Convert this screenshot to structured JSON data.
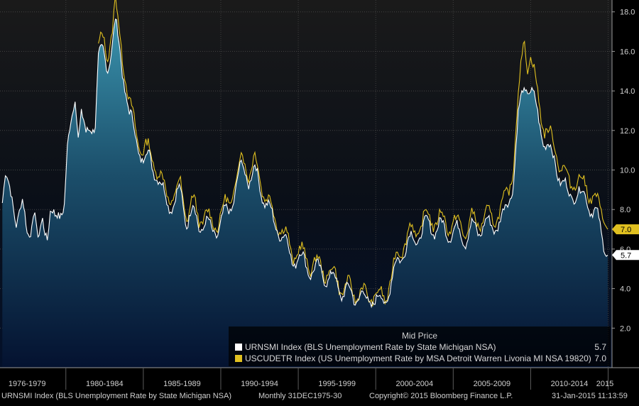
{
  "chart_data": {
    "type": "area",
    "x_unit": "year",
    "xlim": [
      1975.5,
      2015.3
    ],
    "ylim": [
      0,
      18.6
    ],
    "y_ticks": [
      2.0,
      4.0,
      6.0,
      8.0,
      10.0,
      12.0,
      14.0,
      16.0,
      18.0
    ],
    "x_period_labels": [
      {
        "label": "1976-1979",
        "center": 1977.5
      },
      {
        "label": "1980-1984",
        "center": 1982.5
      },
      {
        "label": "1985-1989",
        "center": 1987.5
      },
      {
        "label": "1990-1994",
        "center": 1992.5
      },
      {
        "label": "1995-1999",
        "center": 1997.5
      },
      {
        "label": "2000-2004",
        "center": 2002.5
      },
      {
        "label": "2005-2009",
        "center": 2007.5
      },
      {
        "label": "2010-2014",
        "center": 2012.5
      },
      {
        "label": "2015",
        "center": 2015.1
      }
    ],
    "grid": true,
    "legend_position": "bottom-right",
    "legend_title": "Mid Price",
    "series": [
      {
        "name": "URNSMI Index (BLS Unemployment Rate by State Michigan NSA)",
        "legend_value": "5.7",
        "last_value_label": "5.7",
        "color": "#ffffff",
        "points": [
          [
            1975.9,
            8.6
          ],
          [
            1976.1,
            9.6
          ],
          [
            1976.3,
            9.0
          ],
          [
            1976.6,
            8.4
          ],
          [
            1976.8,
            7.6
          ],
          [
            1977.0,
            7.9
          ],
          [
            1977.2,
            8.1
          ],
          [
            1977.5,
            6.8
          ],
          [
            1977.8,
            7.4
          ],
          [
            1978.0,
            8.0
          ],
          [
            1978.2,
            6.0
          ],
          [
            1978.5,
            7.5
          ],
          [
            1978.8,
            6.9
          ],
          [
            1979.0,
            7.9
          ],
          [
            1979.3,
            7.3
          ],
          [
            1979.6,
            7.9
          ],
          [
            1979.9,
            8.5
          ],
          [
            1980.1,
            10.9
          ],
          [
            1980.4,
            12.5
          ],
          [
            1980.6,
            13.9
          ],
          [
            1980.8,
            12.0
          ],
          [
            1981.0,
            12.9
          ],
          [
            1981.3,
            11.5
          ],
          [
            1981.6,
            12.3
          ],
          [
            1981.9,
            12.5
          ],
          [
            1982.1,
            15.5
          ],
          [
            1982.4,
            15.9
          ],
          [
            1982.7,
            15.4
          ],
          [
            1983.0,
            16.3
          ],
          [
            1983.2,
            17.3
          ],
          [
            1983.5,
            16.0
          ],
          [
            1983.8,
            14.4
          ],
          [
            1984.1,
            12.7
          ],
          [
            1984.4,
            12.0
          ],
          [
            1984.7,
            11.2
          ],
          [
            1985.0,
            10.5
          ],
          [
            1985.4,
            10.6
          ],
          [
            1985.8,
            10.0
          ],
          [
            1986.2,
            8.9
          ],
          [
            1986.6,
            8.4
          ],
          [
            1987.0,
            8.3
          ],
          [
            1987.4,
            8.9
          ],
          [
            1987.8,
            7.5
          ],
          [
            1988.2,
            7.9
          ],
          [
            1988.6,
            7.2
          ],
          [
            1989.0,
            7.4
          ],
          [
            1989.4,
            6.8
          ],
          [
            1989.8,
            7.1
          ],
          [
            1990.2,
            7.6
          ],
          [
            1990.6,
            8.1
          ],
          [
            1991.0,
            9.2
          ],
          [
            1991.4,
            10.2
          ],
          [
            1991.8,
            9.6
          ],
          [
            1992.2,
            9.9
          ],
          [
            1992.6,
            9.0
          ],
          [
            1993.0,
            8.3
          ],
          [
            1993.4,
            7.3
          ],
          [
            1993.8,
            7.0
          ],
          [
            1994.2,
            6.3
          ],
          [
            1994.6,
            5.5
          ],
          [
            1995.0,
            5.6
          ],
          [
            1995.4,
            5.3
          ],
          [
            1995.8,
            5.0
          ],
          [
            1996.2,
            4.9
          ],
          [
            1996.6,
            4.8
          ],
          [
            1997.0,
            4.5
          ],
          [
            1997.4,
            4.4
          ],
          [
            1997.8,
            3.9
          ],
          [
            1998.2,
            3.8
          ],
          [
            1998.6,
            3.6
          ],
          [
            1999.0,
            3.7
          ],
          [
            1999.4,
            3.3
          ],
          [
            1999.8,
            3.6
          ],
          [
            2000.2,
            3.3
          ],
          [
            2000.6,
            3.4
          ],
          [
            2001.0,
            4.3
          ],
          [
            2001.4,
            5.3
          ],
          [
            2001.8,
            6.0
          ],
          [
            2002.2,
            6.4
          ],
          [
            2002.6,
            6.5
          ],
          [
            2003.0,
            7.0
          ],
          [
            2003.4,
            7.2
          ],
          [
            2003.8,
            7.1
          ],
          [
            2004.2,
            7.1
          ],
          [
            2004.6,
            6.9
          ],
          [
            2005.0,
            6.9
          ],
          [
            2005.4,
            6.8
          ],
          [
            2005.8,
            6.6
          ],
          [
            2006.2,
            7.0
          ],
          [
            2006.6,
            7.0
          ],
          [
            2007.0,
            7.3
          ],
          [
            2007.4,
            7.1
          ],
          [
            2007.8,
            7.3
          ],
          [
            2008.2,
            7.5
          ],
          [
            2008.6,
            8.6
          ],
          [
            2008.9,
            9.6
          ],
          [
            2009.2,
            12.5
          ],
          [
            2009.5,
            14.1
          ],
          [
            2009.8,
            14.4
          ],
          [
            2010.0,
            14.0
          ],
          [
            2010.3,
            13.2
          ],
          [
            2010.6,
            12.4
          ],
          [
            2010.9,
            11.4
          ],
          [
            2011.2,
            10.9
          ],
          [
            2011.6,
            10.5
          ],
          [
            2012.0,
            9.3
          ],
          [
            2012.4,
            8.8
          ],
          [
            2012.8,
            8.9
          ],
          [
            2013.2,
            8.6
          ],
          [
            2013.6,
            8.8
          ],
          [
            2014.0,
            7.8
          ],
          [
            2014.4,
            7.4
          ],
          [
            2014.8,
            6.3
          ],
          [
            2014.97,
            5.7
          ]
        ]
      },
      {
        "name": "USCUDETR Index (US Unemployment Rate by MSA Detroit Warren Livonia MI NSA 19820)",
        "legend_value": "7.0",
        "last_value_label": "7.0",
        "color": "#e0c020",
        "points": [
          [
            1982.1,
            16.0
          ],
          [
            1982.4,
            16.6
          ],
          [
            1982.7,
            16.0
          ],
          [
            1983.0,
            17.1
          ],
          [
            1983.2,
            18.3
          ],
          [
            1983.5,
            16.7
          ],
          [
            1983.8,
            15.2
          ],
          [
            1984.1,
            13.2
          ],
          [
            1984.4,
            12.4
          ],
          [
            1984.7,
            11.6
          ],
          [
            1985.0,
            10.9
          ],
          [
            1985.4,
            11.0
          ],
          [
            1985.8,
            10.3
          ],
          [
            1986.2,
            9.3
          ],
          [
            1986.6,
            8.8
          ],
          [
            1987.0,
            8.6
          ],
          [
            1987.4,
            9.2
          ],
          [
            1987.8,
            7.8
          ],
          [
            1988.2,
            8.3
          ],
          [
            1988.6,
            7.6
          ],
          [
            1989.0,
            7.8
          ],
          [
            1989.4,
            7.2
          ],
          [
            1989.8,
            7.5
          ],
          [
            1990.2,
            8.0
          ],
          [
            1990.6,
            8.5
          ],
          [
            1991.0,
            9.6
          ],
          [
            1991.4,
            10.6
          ],
          [
            1991.8,
            10.0
          ],
          [
            1992.2,
            10.4
          ],
          [
            1992.6,
            9.4
          ],
          [
            1993.0,
            8.6
          ],
          [
            1993.4,
            7.6
          ],
          [
            1993.8,
            7.3
          ],
          [
            1994.2,
            6.6
          ],
          [
            1994.6,
            5.8
          ],
          [
            1995.0,
            5.9
          ],
          [
            1995.4,
            5.6
          ],
          [
            1995.8,
            5.3
          ],
          [
            1996.2,
            5.2
          ],
          [
            1996.6,
            5.0
          ],
          [
            1997.0,
            4.8
          ],
          [
            1997.4,
            4.6
          ],
          [
            1997.8,
            4.1
          ],
          [
            1998.2,
            4.0
          ],
          [
            1998.6,
            3.8
          ],
          [
            1999.0,
            3.9
          ],
          [
            1999.4,
            3.5
          ],
          [
            1999.8,
            3.8
          ],
          [
            2000.2,
            3.5
          ],
          [
            2000.6,
            3.6
          ],
          [
            2001.0,
            4.6
          ],
          [
            2001.4,
            5.6
          ],
          [
            2001.8,
            6.4
          ],
          [
            2002.2,
            6.8
          ],
          [
            2002.6,
            6.9
          ],
          [
            2003.0,
            7.4
          ],
          [
            2003.4,
            7.6
          ],
          [
            2003.8,
            7.5
          ],
          [
            2004.2,
            7.5
          ],
          [
            2004.6,
            7.3
          ],
          [
            2005.0,
            7.3
          ],
          [
            2005.4,
            7.2
          ],
          [
            2005.8,
            7.0
          ],
          [
            2006.2,
            7.4
          ],
          [
            2006.6,
            7.4
          ],
          [
            2007.0,
            7.7
          ],
          [
            2007.4,
            7.5
          ],
          [
            2007.8,
            7.8
          ],
          [
            2008.2,
            8.0
          ],
          [
            2008.6,
            9.2
          ],
          [
            2008.9,
            10.4
          ],
          [
            2009.2,
            13.5
          ],
          [
            2009.45,
            15.7
          ],
          [
            2009.6,
            16.9
          ],
          [
            2009.8,
            15.5
          ],
          [
            2010.0,
            15.6
          ],
          [
            2010.3,
            14.4
          ],
          [
            2010.6,
            13.3
          ],
          [
            2010.9,
            12.1
          ],
          [
            2011.2,
            11.6
          ],
          [
            2011.6,
            11.3
          ],
          [
            2012.0,
            10.0
          ],
          [
            2012.4,
            9.4
          ],
          [
            2012.8,
            9.6
          ],
          [
            2013.2,
            9.2
          ],
          [
            2013.6,
            9.4
          ],
          [
            2014.0,
            8.5
          ],
          [
            2014.4,
            8.1
          ],
          [
            2014.8,
            7.9
          ],
          [
            2014.97,
            7.0
          ]
        ]
      }
    ]
  },
  "footer": {
    "left": "URNSMI Index (BLS Unemployment Rate by State Michigan NSA)",
    "freq": "Monthly 31DEC1975-30",
    "copyright": "Copyright© 2015 Bloomberg Finance L.P.",
    "timestamp": "31-Jan-2015 11:13:59"
  },
  "colors": {
    "background_top": "#1a1a1a",
    "background_bottom": "#051530",
    "area_top": "#2e7f9a",
    "area_bottom": "#04102a",
    "grid": "#4a4a4a"
  }
}
